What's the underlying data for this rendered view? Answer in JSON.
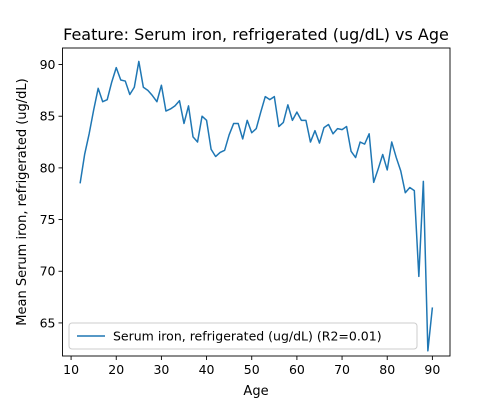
{
  "chart_data": {
    "type": "line",
    "title": "Feature: Serum iron, refrigerated (ug/dL) vs Age",
    "xlabel": "Age",
    "ylabel": "Mean Serum iron, refrigerated (ug/dL)",
    "xlim": [
      8.1,
      93.9
    ],
    "ylim": [
      61.8,
      91.6
    ],
    "xticks": [
      10,
      20,
      30,
      40,
      50,
      60,
      70,
      80,
      90
    ],
    "yticks": [
      65,
      70,
      75,
      80,
      85,
      90
    ],
    "grid": false,
    "legend_placement": "lower-left",
    "series": [
      {
        "name": "Serum iron, refrigerated (ug/dL) (R2=0.01)",
        "color": "#1f77b4",
        "x": [
          12,
          13,
          14,
          15,
          16,
          17,
          18,
          19,
          20,
          21,
          22,
          23,
          24,
          25,
          26,
          27,
          28,
          29,
          30,
          31,
          32,
          33,
          34,
          35,
          36,
          37,
          38,
          39,
          40,
          41,
          42,
          43,
          44,
          45,
          46,
          47,
          48,
          49,
          50,
          51,
          52,
          53,
          54,
          55,
          56,
          57,
          58,
          59,
          60,
          61,
          62,
          63,
          64,
          65,
          66,
          67,
          68,
          69,
          70,
          71,
          72,
          73,
          74,
          75,
          76,
          77,
          78,
          79,
          80,
          81,
          82,
          83,
          84,
          85,
          86,
          87,
          88,
          89,
          90
        ],
        "y": [
          78.5,
          81.3,
          83.3,
          85.6,
          87.7,
          86.4,
          86.6,
          88.3,
          89.7,
          88.5,
          88.4,
          87.1,
          87.8,
          90.3,
          87.8,
          87.5,
          87.0,
          86.4,
          88.0,
          85.5,
          85.7,
          86.0,
          86.5,
          84.3,
          86.0,
          83.0,
          82.5,
          85.0,
          84.6,
          81.8,
          81.1,
          81.5,
          81.7,
          83.2,
          84.3,
          84.3,
          82.8,
          84.6,
          83.4,
          83.8,
          85.4,
          86.9,
          86.6,
          86.9,
          84.0,
          84.4,
          86.1,
          84.6,
          85.4,
          84.6,
          84.6,
          82.5,
          83.6,
          82.4,
          83.9,
          84.2,
          83.3,
          83.8,
          83.7,
          84.0,
          81.6,
          81.0,
          82.5,
          82.3,
          83.3,
          78.6,
          79.9,
          81.3,
          79.8,
          82.5,
          81.0,
          79.7,
          77.6,
          78.1,
          77.8,
          69.5,
          78.7,
          62.3,
          66.5
        ]
      }
    ]
  }
}
